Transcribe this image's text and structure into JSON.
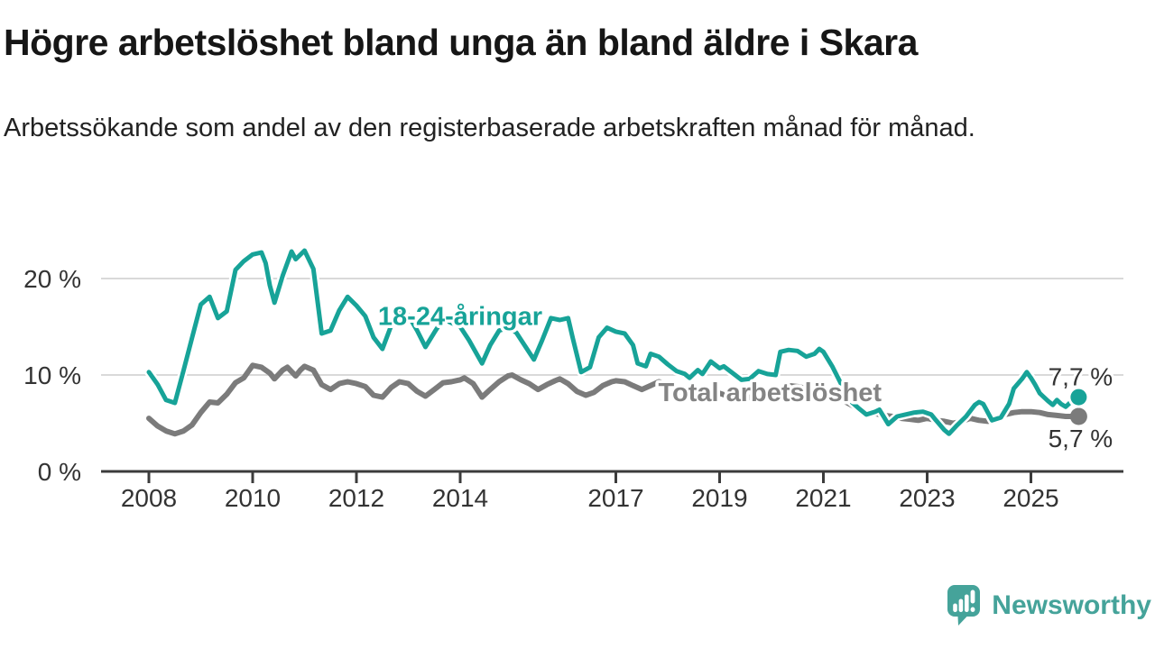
{
  "header": {
    "title": "Högre arbetslöshet bland unga än bland äldre i Skara",
    "subtitle": "Arbetssökande som andel av den registerbaserade arbetskraften månad för månad."
  },
  "footer": {
    "brand": "Newsworthy"
  },
  "colors": {
    "teal_line": "#17a398",
    "gray_line": "#7b7b7b",
    "gray_label": "#848484",
    "axis": "#3c3c3c",
    "gridline": "#d9d9d9",
    "text": "#333333",
    "brand_teal": "#45a39a"
  },
  "chart_data": {
    "type": "line",
    "title": "Högre arbetslöshet bland unga än bland äldre i Skara",
    "xlabel": "",
    "ylabel": "Arbetssökande som andel av den registerbaserade arbetskraften",
    "grid": "horizontal",
    "legend_position": "inline-labels",
    "x_axis": {
      "ticks": [
        2008,
        2010,
        2012,
        2014,
        2017,
        2019,
        2021,
        2023,
        2025
      ],
      "tick_labels": [
        "2008",
        "2010",
        "2012",
        "2014",
        "2017",
        "2019",
        "2021",
        "2023",
        "2025"
      ],
      "range": [
        2007.1,
        2026.8
      ]
    },
    "y_axis": {
      "ticks": [
        0,
        10,
        20
      ],
      "tick_labels": [
        "0 %",
        "10 %",
        "20 %"
      ],
      "range": [
        0,
        23.5
      ],
      "unit": "%"
    },
    "series": [
      {
        "name": "18-24-åringar",
        "color": "#17a398",
        "label_color": "#17a398",
        "label_pos": [
          2014.0,
          16.1
        ],
        "end_label": "7,7 %",
        "end_value": 7.7,
        "points": [
          [
            2008.0,
            10.3
          ],
          [
            2008.17,
            9.0
          ],
          [
            2008.33,
            7.4
          ],
          [
            2008.5,
            7.1
          ],
          [
            2008.67,
            10.5
          ],
          [
            2008.83,
            13.8
          ],
          [
            2009.0,
            17.3
          ],
          [
            2009.17,
            18.1
          ],
          [
            2009.33,
            15.9
          ],
          [
            2009.5,
            16.6
          ],
          [
            2009.67,
            20.9
          ],
          [
            2009.83,
            21.8
          ],
          [
            2010.0,
            22.5
          ],
          [
            2010.17,
            22.7
          ],
          [
            2010.25,
            21.6
          ],
          [
            2010.33,
            19.3
          ],
          [
            2010.42,
            17.5
          ],
          [
            2010.58,
            20.3
          ],
          [
            2010.75,
            22.8
          ],
          [
            2010.83,
            22.0
          ],
          [
            2011.0,
            22.9
          ],
          [
            2011.17,
            21.0
          ],
          [
            2011.33,
            14.3
          ],
          [
            2011.5,
            14.6
          ],
          [
            2011.67,
            16.7
          ],
          [
            2011.83,
            18.1
          ],
          [
            2012.0,
            17.2
          ],
          [
            2012.17,
            16.1
          ],
          [
            2012.33,
            13.9
          ],
          [
            2012.5,
            12.7
          ],
          [
            2012.67,
            15.1
          ],
          [
            2012.83,
            16.9
          ],
          [
            2013.0,
            16.2
          ],
          [
            2013.17,
            14.6
          ],
          [
            2013.33,
            12.9
          ],
          [
            2013.5,
            14.4
          ],
          [
            2013.67,
            15.8
          ],
          [
            2013.83,
            15.4
          ],
          [
            2014.0,
            15.0
          ],
          [
            2014.17,
            13.6
          ],
          [
            2014.42,
            11.2
          ],
          [
            2014.58,
            13.1
          ],
          [
            2014.75,
            14.6
          ],
          [
            2014.92,
            14.9
          ],
          [
            2015.08,
            14.4
          ],
          [
            2015.25,
            13.0
          ],
          [
            2015.42,
            11.6
          ],
          [
            2015.58,
            13.6
          ],
          [
            2015.75,
            15.9
          ],
          [
            2015.92,
            15.7
          ],
          [
            2016.08,
            15.9
          ],
          [
            2016.17,
            13.8
          ],
          [
            2016.33,
            10.3
          ],
          [
            2016.5,
            10.8
          ],
          [
            2016.67,
            13.9
          ],
          [
            2016.83,
            14.9
          ],
          [
            2017.0,
            14.5
          ],
          [
            2017.17,
            14.3
          ],
          [
            2017.33,
            13.1
          ],
          [
            2017.42,
            11.2
          ],
          [
            2017.58,
            10.9
          ],
          [
            2017.67,
            12.2
          ],
          [
            2017.83,
            11.9
          ],
          [
            2018.0,
            11.1
          ],
          [
            2018.17,
            10.4
          ],
          [
            2018.33,
            10.1
          ],
          [
            2018.42,
            9.7
          ],
          [
            2018.58,
            10.5
          ],
          [
            2018.67,
            10.1
          ],
          [
            2018.83,
            11.4
          ],
          [
            2019.0,
            10.7
          ],
          [
            2019.08,
            10.9
          ],
          [
            2019.25,
            10.2
          ],
          [
            2019.42,
            9.5
          ],
          [
            2019.58,
            9.6
          ],
          [
            2019.75,
            10.4
          ],
          [
            2019.92,
            10.1
          ],
          [
            2020.08,
            10.0
          ],
          [
            2020.17,
            12.4
          ],
          [
            2020.33,
            12.6
          ],
          [
            2020.5,
            12.5
          ],
          [
            2020.67,
            11.9
          ],
          [
            2020.83,
            12.2
          ],
          [
            2020.92,
            12.7
          ],
          [
            2021.0,
            12.4
          ],
          [
            2021.17,
            10.9
          ],
          [
            2021.33,
            9.2
          ],
          [
            2021.5,
            7.4
          ],
          [
            2021.67,
            6.6
          ],
          [
            2021.83,
            5.9
          ],
          [
            2022.0,
            6.2
          ],
          [
            2022.08,
            6.4
          ],
          [
            2022.25,
            4.9
          ],
          [
            2022.42,
            5.7
          ],
          [
            2022.58,
            5.9
          ],
          [
            2022.75,
            6.1
          ],
          [
            2022.92,
            6.2
          ],
          [
            2023.08,
            5.9
          ],
          [
            2023.17,
            5.3
          ],
          [
            2023.33,
            4.3
          ],
          [
            2023.42,
            3.9
          ],
          [
            2023.58,
            4.8
          ],
          [
            2023.75,
            5.7
          ],
          [
            2023.92,
            6.9
          ],
          [
            2024.0,
            7.2
          ],
          [
            2024.08,
            7.0
          ],
          [
            2024.25,
            5.3
          ],
          [
            2024.42,
            5.6
          ],
          [
            2024.58,
            7.0
          ],
          [
            2024.67,
            8.6
          ],
          [
            2024.83,
            9.6
          ],
          [
            2024.92,
            10.3
          ],
          [
            2025.0,
            9.7
          ],
          [
            2025.08,
            9.0
          ],
          [
            2025.17,
            8.1
          ],
          [
            2025.33,
            7.3
          ],
          [
            2025.42,
            6.9
          ],
          [
            2025.5,
            7.4
          ],
          [
            2025.58,
            7.0
          ],
          [
            2025.67,
            6.7
          ],
          [
            2025.75,
            7.1
          ],
          [
            2025.92,
            7.7
          ]
        ]
      },
      {
        "name": "Total arbetslöshet",
        "color": "#7b7b7b",
        "label_color": "#848484",
        "label_pos": [
          2019.97,
          8.22
        ],
        "end_label": "5,7 %",
        "end_value": 5.7,
        "points": [
          [
            2008.0,
            5.5
          ],
          [
            2008.17,
            4.7
          ],
          [
            2008.33,
            4.2
          ],
          [
            2008.5,
            3.9
          ],
          [
            2008.67,
            4.2
          ],
          [
            2008.83,
            4.8
          ],
          [
            2009.0,
            6.1
          ],
          [
            2009.17,
            7.2
          ],
          [
            2009.33,
            7.1
          ],
          [
            2009.5,
            8.0
          ],
          [
            2009.67,
            9.2
          ],
          [
            2009.83,
            9.7
          ],
          [
            2010.0,
            11.0
          ],
          [
            2010.17,
            10.8
          ],
          [
            2010.33,
            10.2
          ],
          [
            2010.42,
            9.6
          ],
          [
            2010.58,
            10.5
          ],
          [
            2010.67,
            10.8
          ],
          [
            2010.83,
            9.9
          ],
          [
            2010.92,
            10.5
          ],
          [
            2011.0,
            10.9
          ],
          [
            2011.17,
            10.5
          ],
          [
            2011.33,
            9.0
          ],
          [
            2011.5,
            8.5
          ],
          [
            2011.67,
            9.1
          ],
          [
            2011.83,
            9.3
          ],
          [
            2012.0,
            9.1
          ],
          [
            2012.17,
            8.8
          ],
          [
            2012.33,
            7.9
          ],
          [
            2012.5,
            7.7
          ],
          [
            2012.67,
            8.7
          ],
          [
            2012.83,
            9.3
          ],
          [
            2013.0,
            9.1
          ],
          [
            2013.17,
            8.3
          ],
          [
            2013.33,
            7.8
          ],
          [
            2013.5,
            8.5
          ],
          [
            2013.67,
            9.2
          ],
          [
            2013.83,
            9.3
          ],
          [
            2014.0,
            9.5
          ],
          [
            2014.08,
            9.7
          ],
          [
            2014.25,
            9.1
          ],
          [
            2014.42,
            7.7
          ],
          [
            2014.58,
            8.5
          ],
          [
            2014.75,
            9.3
          ],
          [
            2014.92,
            9.9
          ],
          [
            2015.0,
            10.0
          ],
          [
            2015.17,
            9.5
          ],
          [
            2015.33,
            9.1
          ],
          [
            2015.5,
            8.5
          ],
          [
            2015.67,
            9.0
          ],
          [
            2015.83,
            9.4
          ],
          [
            2015.92,
            9.6
          ],
          [
            2016.08,
            9.1
          ],
          [
            2016.25,
            8.3
          ],
          [
            2016.42,
            7.9
          ],
          [
            2016.58,
            8.2
          ],
          [
            2016.75,
            8.9
          ],
          [
            2016.92,
            9.3
          ],
          [
            2017.0,
            9.4
          ],
          [
            2017.17,
            9.3
          ],
          [
            2017.33,
            8.9
          ],
          [
            2017.5,
            8.5
          ],
          [
            2017.67,
            8.9
          ],
          [
            2017.83,
            9.3
          ],
          [
            2018.0,
            9.0
          ],
          [
            2018.17,
            8.4
          ],
          [
            2018.33,
            8.0
          ],
          [
            2018.5,
            7.8
          ],
          [
            2018.67,
            8.0
          ],
          [
            2018.83,
            8.3
          ],
          [
            2019.0,
            8.1
          ],
          [
            2019.17,
            7.8
          ],
          [
            2019.33,
            7.5
          ],
          [
            2019.5,
            7.6
          ],
          [
            2019.67,
            7.8
          ],
          [
            2019.83,
            7.7
          ],
          [
            2020.0,
            7.9
          ],
          [
            2020.17,
            8.5
          ],
          [
            2020.33,
            8.9
          ],
          [
            2020.5,
            8.8
          ],
          [
            2020.67,
            8.6
          ],
          [
            2020.83,
            8.5
          ],
          [
            2021.0,
            8.4
          ],
          [
            2021.17,
            8.1
          ],
          [
            2021.33,
            7.5
          ],
          [
            2021.5,
            7.0
          ],
          [
            2021.67,
            6.5
          ],
          [
            2021.83,
            6.1
          ],
          [
            2022.0,
            6.0
          ],
          [
            2022.17,
            5.8
          ],
          [
            2022.33,
            5.7
          ],
          [
            2022.5,
            5.5
          ],
          [
            2022.67,
            5.4
          ],
          [
            2022.83,
            5.3
          ],
          [
            2023.0,
            5.5
          ],
          [
            2023.17,
            5.3
          ],
          [
            2023.33,
            5.2
          ],
          [
            2023.5,
            5.0
          ],
          [
            2023.67,
            5.2
          ],
          [
            2023.83,
            5.5
          ],
          [
            2024.0,
            5.3
          ],
          [
            2024.17,
            5.2
          ],
          [
            2024.33,
            5.5
          ],
          [
            2024.5,
            5.9
          ],
          [
            2024.67,
            6.1
          ],
          [
            2024.83,
            6.2
          ],
          [
            2025.0,
            6.2
          ],
          [
            2025.17,
            6.1
          ],
          [
            2025.33,
            5.9
          ],
          [
            2025.5,
            5.8
          ],
          [
            2025.67,
            5.7
          ],
          [
            2025.92,
            5.7
          ]
        ]
      }
    ]
  }
}
